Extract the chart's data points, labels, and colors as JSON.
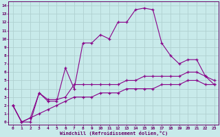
{
  "xlabel": "Windchill (Refroidissement éolien,°C)",
  "background_color": "#c8eaea",
  "grid_color": "#b0d0d0",
  "line_color": "#880088",
  "text_color": "#660066",
  "x_ticks": [
    0,
    1,
    2,
    3,
    4,
    5,
    6,
    7,
    8,
    9,
    10,
    11,
    12,
    13,
    14,
    15,
    16,
    17,
    18,
    19,
    20,
    21,
    22,
    23
  ],
  "y_ticks": [
    0,
    1,
    2,
    3,
    4,
    5,
    6,
    7,
    8,
    9,
    10,
    11,
    12,
    13,
    14
  ],
  "ylim": [
    -0.3,
    14.5
  ],
  "xlim": [
    -0.5,
    23.5
  ],
  "line1_x": [
    0,
    1,
    2,
    3,
    4,
    5,
    6,
    7,
    8,
    9,
    10,
    11,
    12,
    13,
    14,
    15,
    16,
    17,
    18,
    19,
    20,
    21,
    22,
    23
  ],
  "line1_y": [
    2,
    0,
    0,
    3.5,
    2.5,
    2.5,
    6.5,
    4.0,
    9.5,
    9.5,
    10.5,
    10.0,
    12.0,
    12.0,
    13.5,
    13.7,
    13.5,
    9.5,
    8.0,
    7.0,
    7.5,
    7.5,
    5.5,
    4.5
  ],
  "line2_x": [
    0,
    1,
    2,
    3,
    4,
    5,
    6,
    7,
    8,
    9,
    10,
    11,
    12,
    13,
    14,
    15,
    16,
    17,
    18,
    19,
    20,
    21,
    22,
    23
  ],
  "line2_y": [
    2,
    0,
    0.5,
    3.5,
    2.7,
    2.7,
    3.0,
    4.5,
    4.5,
    4.5,
    4.5,
    4.5,
    4.5,
    5.0,
    5.0,
    5.5,
    5.5,
    5.5,
    5.5,
    5.5,
    6.0,
    6.0,
    5.5,
    5.0
  ],
  "line3_x": [
    0,
    1,
    2,
    3,
    4,
    5,
    6,
    7,
    8,
    9,
    10,
    11,
    12,
    13,
    14,
    15,
    16,
    17,
    18,
    19,
    20,
    21,
    22,
    23
  ],
  "line3_y": [
    2,
    0,
    0.5,
    1.0,
    1.5,
    2.0,
    2.5,
    3.0,
    3.0,
    3.0,
    3.5,
    3.5,
    3.5,
    4.0,
    4.0,
    4.0,
    4.0,
    4.5,
    4.5,
    4.5,
    5.0,
    5.0,
    4.5,
    4.5
  ]
}
